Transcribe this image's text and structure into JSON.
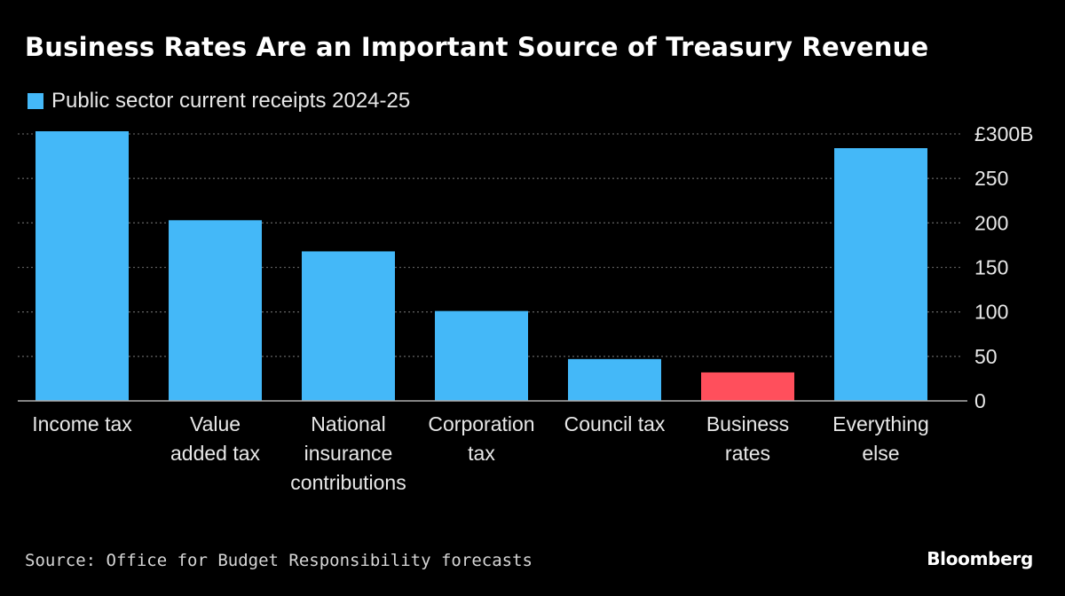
{
  "title": "Business Rates Are an Important Source of Treasury Revenue",
  "source": "Source: Office for Budget Responsibility forecasts",
  "brand": "Bloomberg",
  "colors": {
    "background": "#000000",
    "bar": "#44b8f8",
    "highlight": "#ff4f5c",
    "grid": "#5a5a5a",
    "text": "#e8e8e8"
  },
  "chart_data": {
    "type": "bar",
    "title": "Business Rates Are an Important Source of Treasury Revenue",
    "legend": {
      "entries": [
        "Public sector current receipts 2024-25"
      ],
      "placement": "top-left"
    },
    "categories": [
      [
        "Income tax"
      ],
      [
        "Value",
        "added tax"
      ],
      [
        "National",
        "insurance",
        "contributions"
      ],
      [
        "Corporation",
        "tax"
      ],
      [
        "Council tax"
      ],
      [
        "Business",
        "rates"
      ],
      [
        "Everything",
        "else"
      ]
    ],
    "series": [
      {
        "name": "Public sector current receipts 2024-25",
        "values": [
          303,
          203,
          168,
          101,
          47,
          32,
          284
        ]
      }
    ],
    "highlight_index": 5,
    "ylim": [
      0,
      300
    ],
    "yticks": [
      {
        "value": 300,
        "label": "£300B"
      },
      {
        "value": 250,
        "label": "250"
      },
      {
        "value": 200,
        "label": "200"
      },
      {
        "value": 150,
        "label": "150"
      },
      {
        "value": 100,
        "label": "100"
      },
      {
        "value": 50,
        "label": "50"
      },
      {
        "value": 0,
        "label": "0"
      }
    ],
    "y_axis_position": "right",
    "grid": "dotted-horizontal",
    "xlabel": "",
    "ylabel": ""
  }
}
